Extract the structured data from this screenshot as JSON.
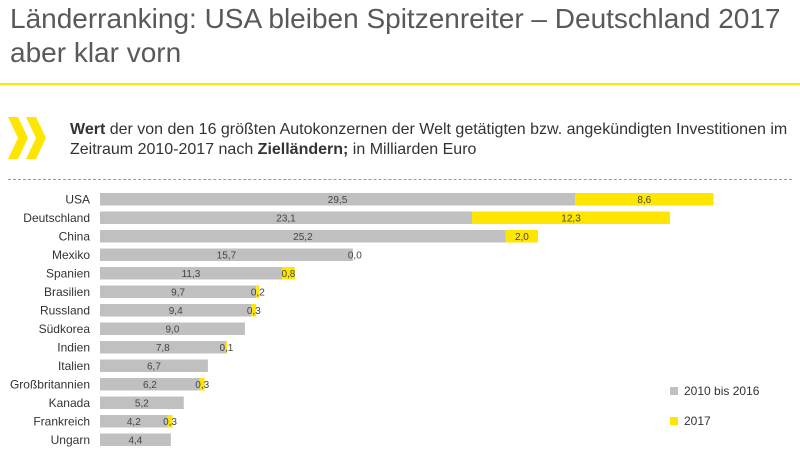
{
  "title": "Länderranking: USA bleiben Spitzenreiter – Deutschland 2017 aber klar vorn",
  "subtitle": {
    "part1_bold": "Wert",
    "part2": " der von den 16 größten Autokonzernen der Welt getätigten bzw. angekündigten Investitionen im Zeitraum 2010-2017 nach ",
    "part3_bold": "Zielländern;",
    "part4": " in Milliarden Euro"
  },
  "colors": {
    "accent": "#ffe600",
    "bar_base": "#c0c0c0",
    "text": "#333333",
    "title": "#595959"
  },
  "chart_data": {
    "type": "bar",
    "orientation": "horizontal",
    "stacked": true,
    "categories": [
      "USA",
      "Deutschland",
      "China",
      "Mexiko",
      "Spanien",
      "Brasilien",
      "Russland",
      "Südkorea",
      "Indien",
      "Italien",
      "Großbritannien",
      "Kanada",
      "Frankreich",
      "Ungarn"
    ],
    "series": [
      {
        "name": "2010 bis 2016",
        "color": "#c0c0c0",
        "values": [
          29.5,
          23.1,
          25.2,
          15.7,
          11.3,
          9.7,
          9.4,
          9.0,
          7.8,
          6.7,
          6.2,
          5.2,
          4.2,
          4.4
        ],
        "labels": [
          "29,5",
          "23,1",
          "25,2",
          "15,7",
          "11,3",
          "9,7",
          "9,4",
          "9,0",
          "7,8",
          "6,7",
          "6,2",
          "5,2",
          "4,2",
          "4,4"
        ]
      },
      {
        "name": "2017",
        "color": "#ffe600",
        "values": [
          8.6,
          12.3,
          2.0,
          0.0,
          0.8,
          0.2,
          0.3,
          null,
          0.1,
          null,
          0.3,
          null,
          0.3,
          null
        ],
        "labels": [
          "8,6",
          "12,3",
          "2,0",
          "0,0",
          "0,8",
          "0,2",
          "0,3",
          null,
          "0,1",
          null,
          "0,3",
          null,
          "0,3",
          null
        ]
      }
    ],
    "xlim": [
      0,
      38.5
    ],
    "grid": false,
    "legend": "bottom-right"
  }
}
